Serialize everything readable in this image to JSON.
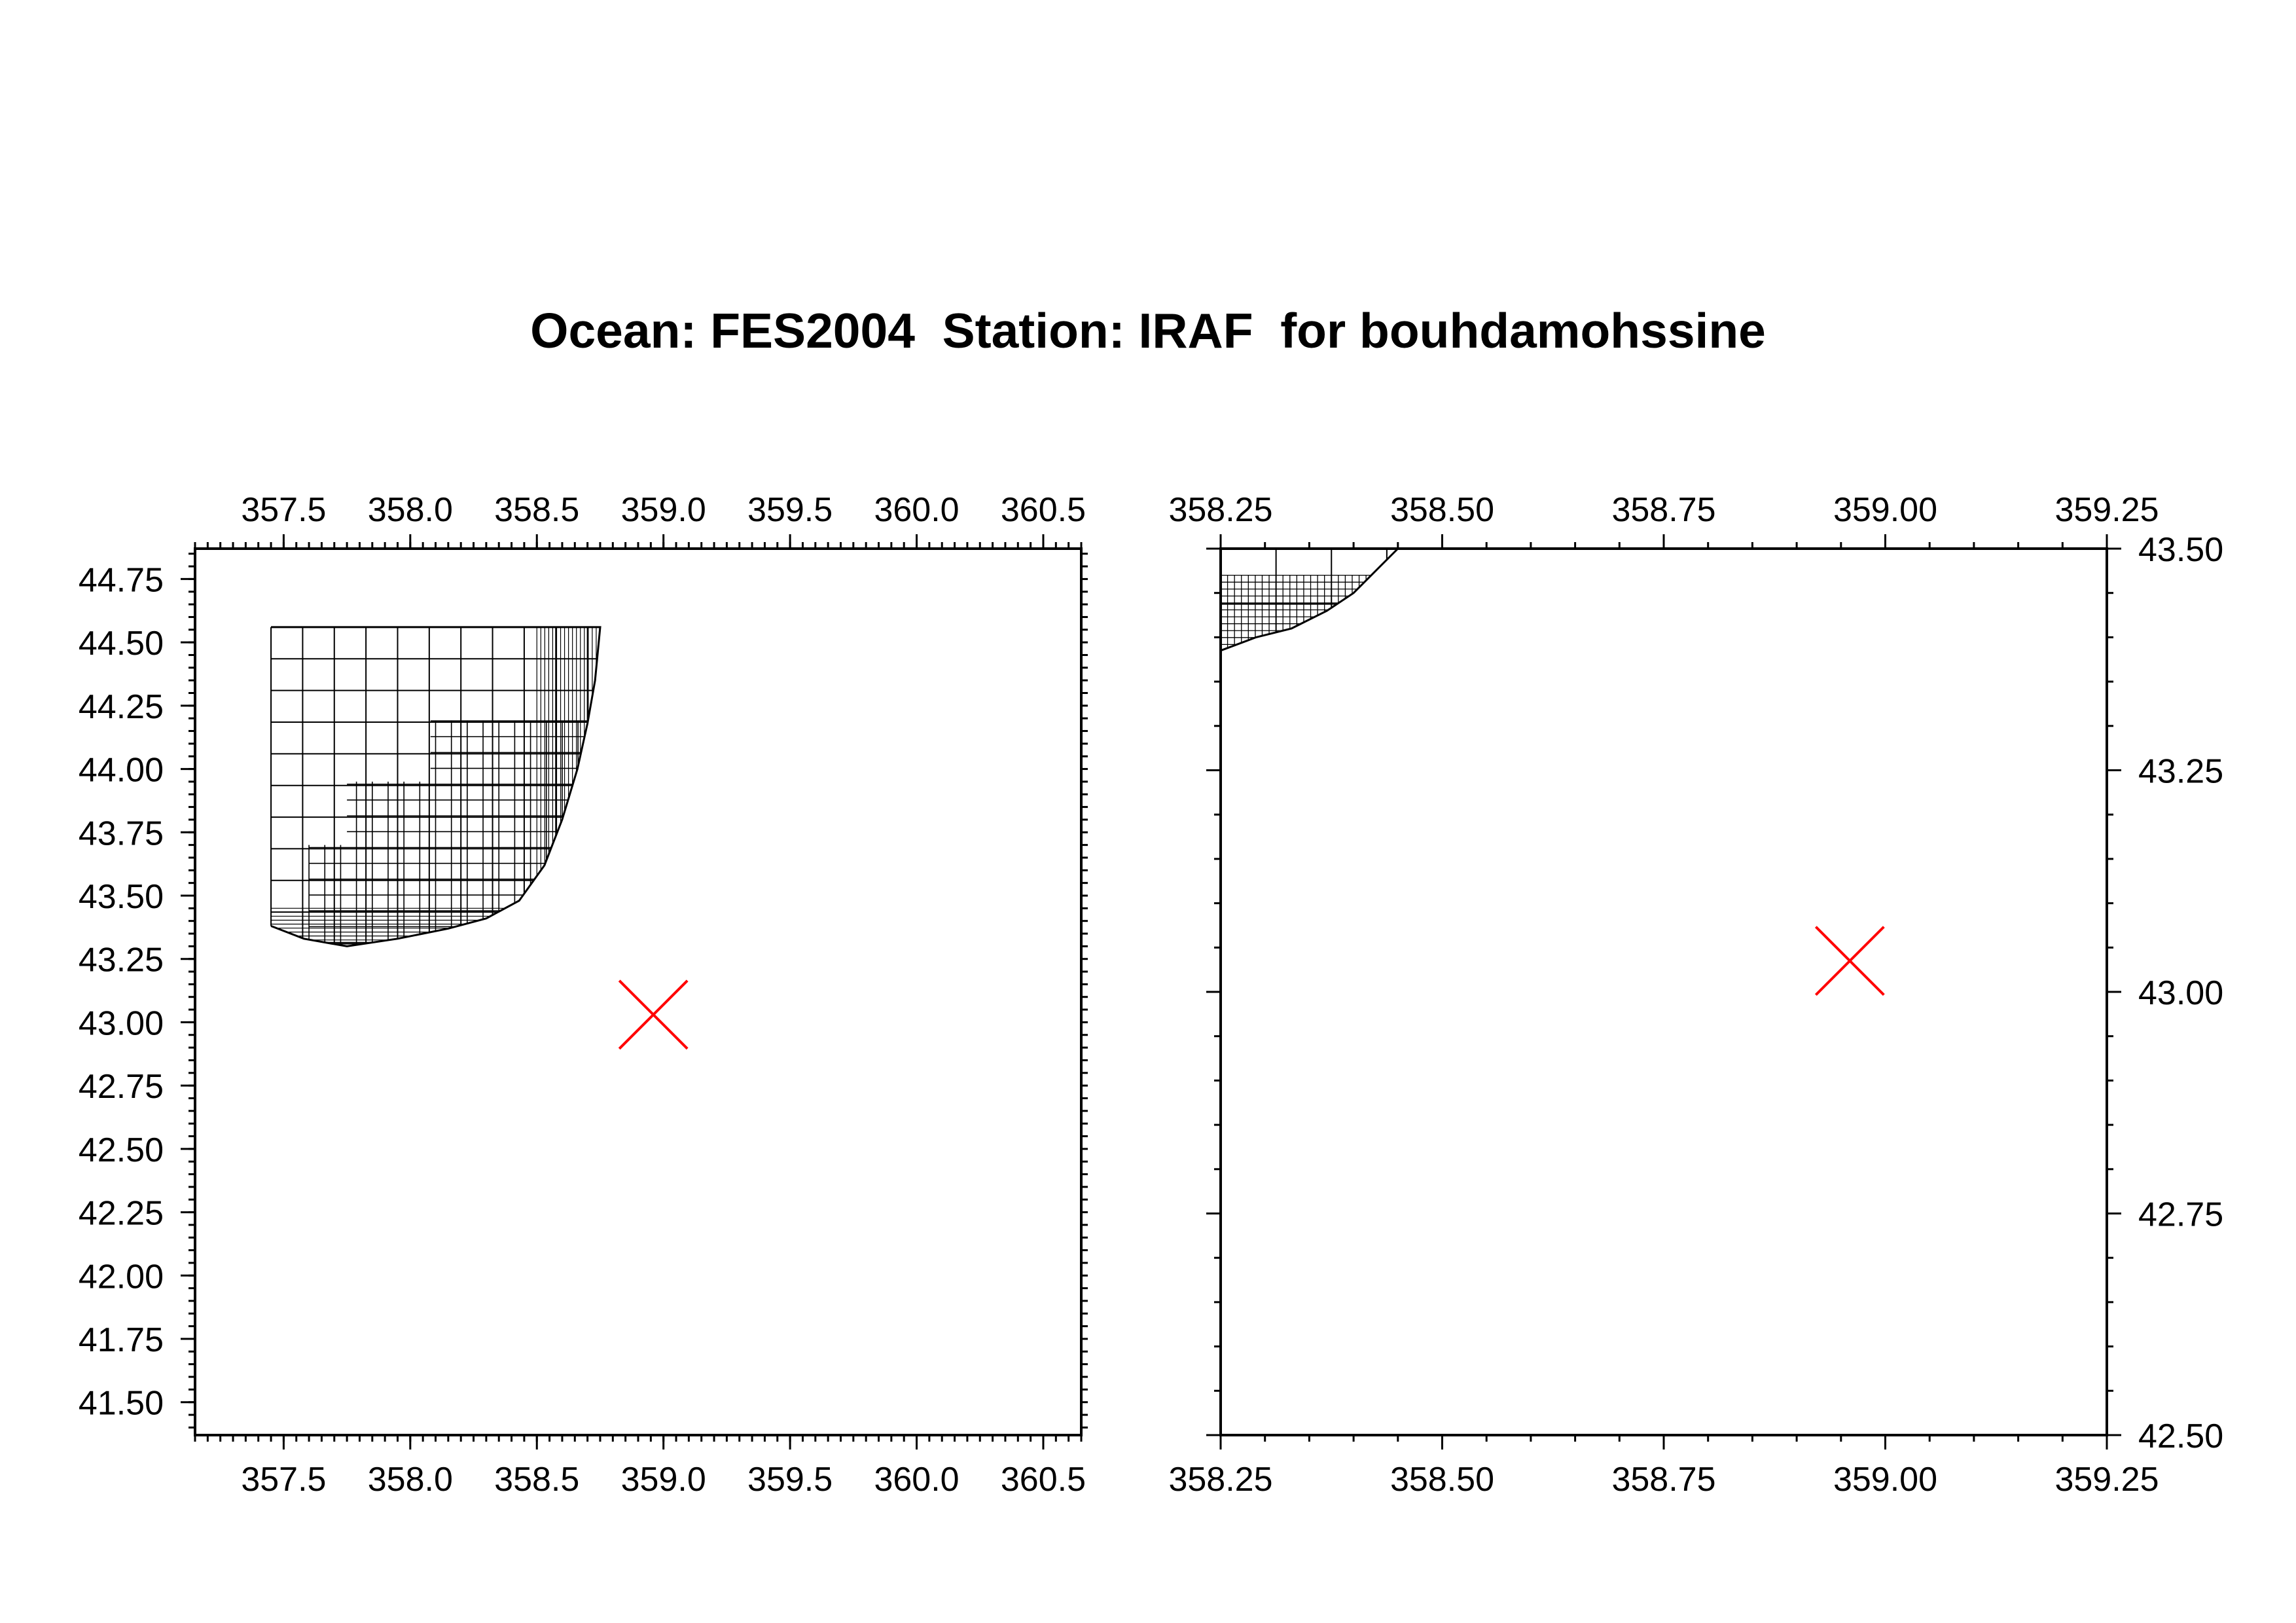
{
  "title": "Ocean: FES2004  Station: IRAF  for bouhdamohssine",
  "colors": {
    "axes": "#000000",
    "grid": "#000000",
    "station_marker": "#ff0000"
  },
  "chart_data": [
    {
      "type": "scatter",
      "name": "overview-map",
      "xlim": [
        357.15,
        360.65
      ],
      "ylim": [
        41.37,
        44.87
      ],
      "xticks": [
        "357.5",
        "358.0",
        "358.5",
        "359.0",
        "359.5",
        "360.0",
        "360.5"
      ],
      "yticks": [
        "41.50",
        "41.75",
        "42.00",
        "42.25",
        "42.50",
        "42.75",
        "43.00",
        "43.25",
        "43.50",
        "43.75",
        "44.00",
        "44.25",
        "44.50",
        "44.75"
      ],
      "xtick_position": "top-and-bottom",
      "ytick_position": "left",
      "station": {
        "label": "IRAF",
        "lon": 358.96,
        "lat": 43.03,
        "marker": "x"
      },
      "mesh_region": {
        "lon_min": 357.45,
        "lon_max": 358.75,
        "lat_top": 44.56,
        "coastline": [
          [
            358.75,
            44.56
          ],
          [
            358.73,
            44.35
          ],
          [
            358.7,
            44.18
          ],
          [
            358.66,
            44.0
          ],
          [
            358.6,
            43.8
          ],
          [
            358.53,
            43.62
          ],
          [
            358.43,
            43.48
          ],
          [
            358.3,
            43.41
          ],
          [
            358.15,
            43.37
          ],
          [
            357.95,
            43.33
          ],
          [
            357.75,
            43.3
          ],
          [
            357.58,
            43.33
          ],
          [
            357.45,
            43.38
          ]
        ],
        "cell_size_deg": [
          0.125,
          0.0625,
          0.03125
        ]
      }
    },
    {
      "type": "scatter",
      "name": "zoom-map",
      "xlim": [
        358.25,
        359.25
      ],
      "ylim": [
        42.5,
        43.5
      ],
      "xticks": [
        "358.25",
        "358.50",
        "358.75",
        "359.00",
        "359.25"
      ],
      "yticks": [
        "42.50",
        "42.75",
        "43.00",
        "43.25",
        "43.50"
      ],
      "xtick_position": "top-and-bottom",
      "ytick_position": "right",
      "station": {
        "label": "IRAF",
        "lon": 358.96,
        "lat": 43.035,
        "marker": "x"
      },
      "mesh_region": {
        "coastline": [
          [
            358.45,
            43.5
          ],
          [
            358.43,
            43.48
          ],
          [
            358.4,
            43.45
          ],
          [
            358.37,
            43.43
          ],
          [
            358.33,
            43.41
          ],
          [
            358.29,
            43.4
          ],
          [
            358.25,
            43.385
          ]
        ]
      }
    }
  ]
}
